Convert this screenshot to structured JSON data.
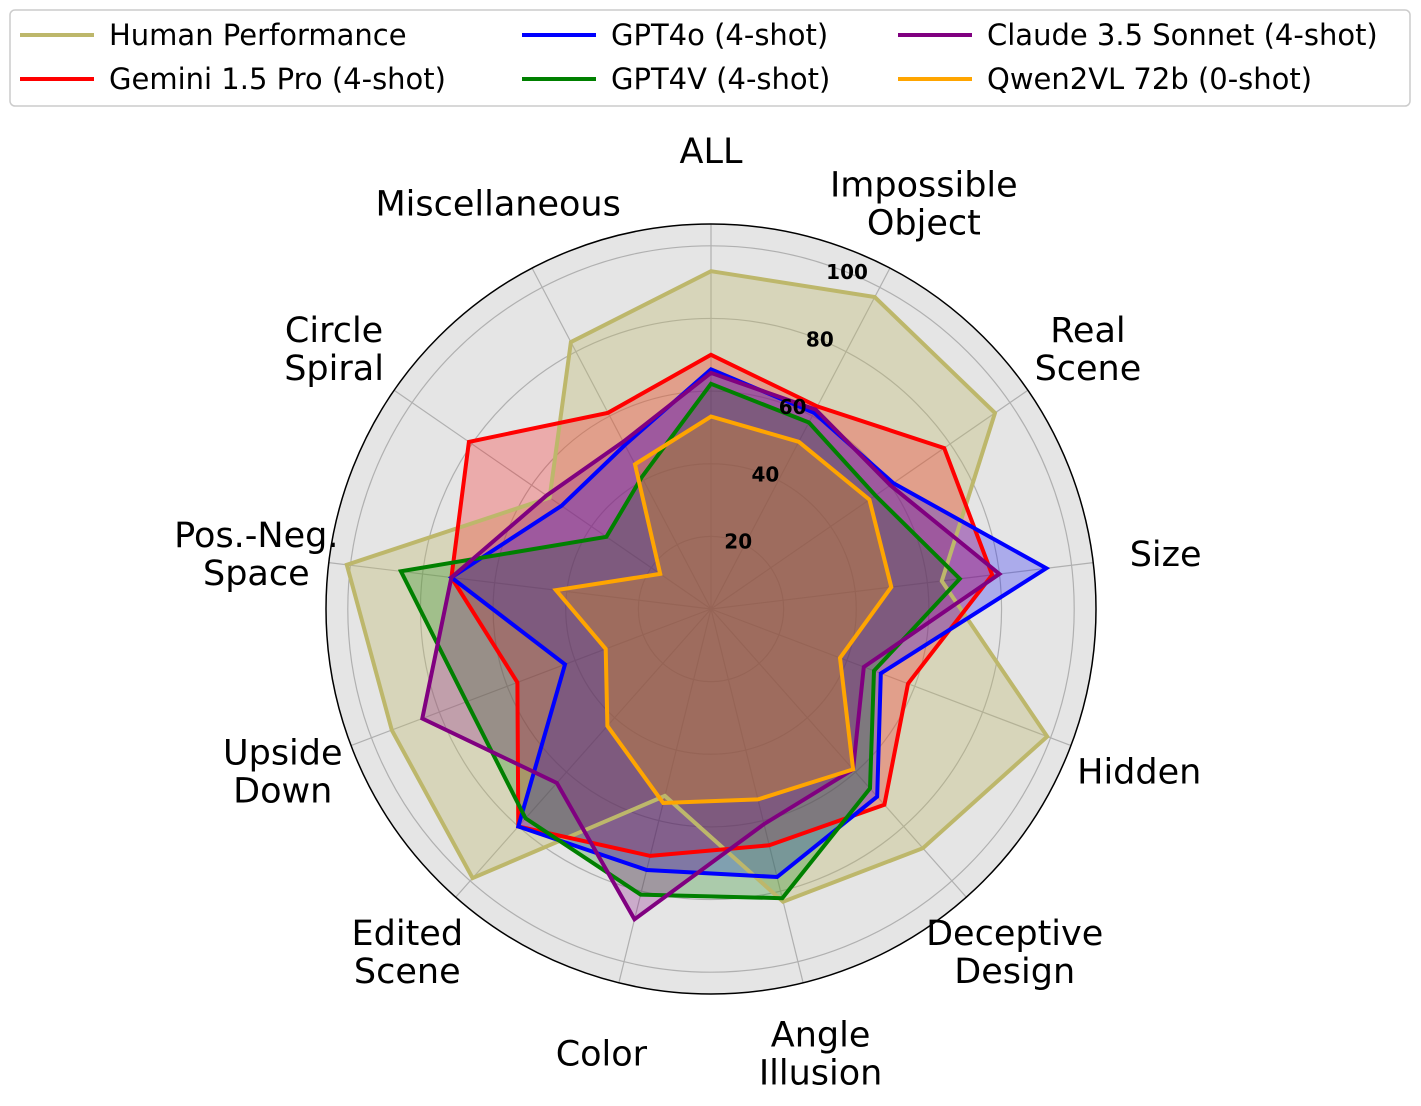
{
  "chart_data": {
    "type": "radar",
    "title": "",
    "categories": [
      [
        "ALL"
      ],
      [
        "Impossible",
        "Object"
      ],
      [
        "Real",
        "Scene"
      ],
      [
        "Size"
      ],
      [
        "Hidden"
      ],
      [
        "Deceptive",
        "Design"
      ],
      [
        "Angle",
        "Illusion"
      ],
      [
        "Color"
      ],
      [
        "Edited",
        "Scene"
      ],
      [
        "Upside",
        "Down"
      ],
      [
        "Pos.-Neg.",
        "Space"
      ],
      [
        "Circle",
        "Spiral"
      ],
      [
        "Miscellaneous"
      ]
    ],
    "rlim": [
      0,
      106
    ],
    "rticks": [
      "20",
      "40",
      "60",
      "80",
      "100"
    ],
    "rtick_values": [
      20,
      40,
      60,
      80,
      100
    ],
    "grid": true,
    "legend_position": "top",
    "series": [
      {
        "name": "Human Performance",
        "color": "#bdb76b",
        "fill_alpha": 0.35,
        "values": [
          93,
          97,
          95,
          64,
          99,
          88,
          83,
          53,
          99,
          94,
          101,
          54,
          83
        ]
      },
      {
        "name": "Gemini 1.5 Pro (4-shot)",
        "color": "#ff0000",
        "fill_alpha": 0.25,
        "values": [
          70,
          63,
          78,
          78,
          58,
          72,
          67,
          70,
          80,
          57,
          72,
          81,
          61
        ]
      },
      {
        "name": "GPT4o (4-shot)",
        "color": "#0000ff",
        "fill_alpha": 0.25,
        "values": [
          66,
          61,
          61,
          93,
          50,
          69,
          76,
          74,
          80,
          43,
          72,
          50,
          51
        ]
      },
      {
        "name": "GPT4V (4-shot)",
        "color": "#008000",
        "fill_alpha": 0.25,
        "values": [
          62,
          58,
          55,
          69,
          48,
          66,
          82,
          81,
          77,
          72,
          86,
          35,
          41
        ]
      },
      {
        "name": "Claude 3.5 Sonnet (4-shot)",
        "color": "#800080",
        "fill_alpha": 0.25,
        "values": [
          65,
          62,
          60,
          80,
          45,
          59,
          61,
          88,
          64,
          85,
          72,
          55,
          52
        ]
      },
      {
        "name": "Qwen2VL 72b (0-shot)",
        "color": "#ffa500",
        "fill_alpha": 0.25,
        "values": [
          53,
          52,
          53,
          50,
          38,
          59,
          54,
          55,
          43,
          31,
          43,
          17,
          45
        ]
      }
    ]
  }
}
